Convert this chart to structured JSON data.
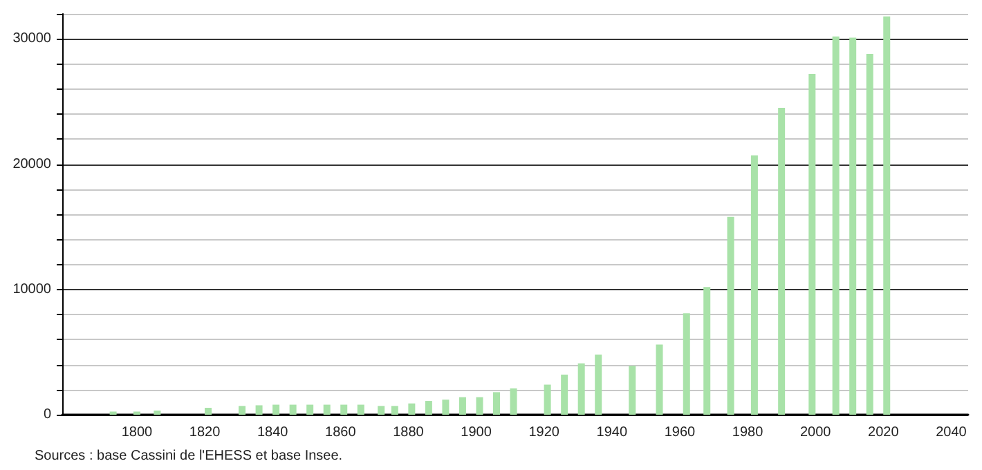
{
  "chart_data": {
    "type": "bar",
    "x": [
      1793,
      1800,
      1806,
      1821,
      1831,
      1836,
      1841,
      1846,
      1851,
      1856,
      1861,
      1866,
      1872,
      1876,
      1881,
      1886,
      1891,
      1896,
      1901,
      1906,
      1911,
      1921,
      1926,
      1931,
      1936,
      1946,
      1954,
      1962,
      1968,
      1975,
      1982,
      1990,
      1999,
      2006,
      2011,
      2016,
      2021
    ],
    "series": [
      {
        "color": "#a8e2a8",
        "values": [
          250,
          250,
          330,
          550,
          700,
          750,
          800,
          800,
          800,
          800,
          800,
          800,
          700,
          700,
          900,
          1100,
          1200,
          1400,
          1400,
          1800,
          2100,
          2400,
          3200,
          4100,
          4800,
          3900,
          5600,
          8100,
          10200,
          15800,
          20700,
          24500,
          27200,
          30200,
          30100,
          28800,
          31800
        ]
      }
    ],
    "xlim": [
      1778,
      2045
    ],
    "xticks": [
      1800,
      1820,
      1840,
      1860,
      1880,
      1900,
      1920,
      1940,
      1960,
      1980,
      2000,
      2020,
      2040
    ],
    "ylim": [
      0,
      32000
    ],
    "yticks": [
      0,
      {
        "value": 2000,
        "label": null
      },
      {
        "value": 4000,
        "label": null
      },
      {
        "value": 6000,
        "label": null
      },
      {
        "value": 8000,
        "label": null
      },
      10000,
      {
        "value": 12000,
        "label": null
      },
      {
        "value": 14000,
        "label": null
      },
      {
        "value": 16000,
        "label": null
      },
      {
        "value": 18000,
        "label": null
      },
      20000,
      {
        "value": 22000,
        "label": null
      },
      {
        "value": 24000,
        "label": null
      },
      {
        "value": 26000,
        "label": null
      },
      {
        "value": 28000,
        "label": null
      },
      30000,
      {
        "value": 32000,
        "label": null
      }
    ],
    "grid": true,
    "annotations": [
      "Sources : base Cassini de l'EHESS et base Insee."
    ]
  }
}
